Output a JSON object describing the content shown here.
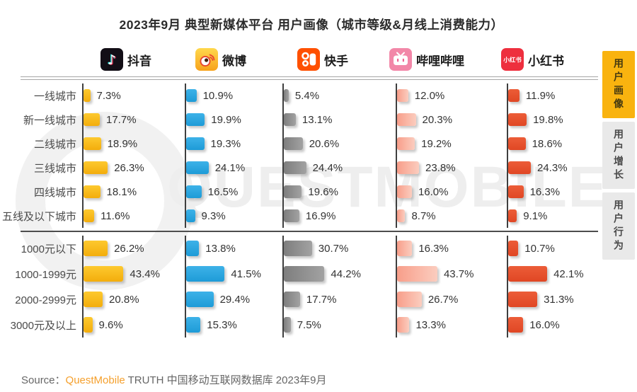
{
  "title": "2023年9月 典型新媒体平台 用户画像（城市等级&月线上消费能力）",
  "platforms": [
    {
      "name": "抖音",
      "icon": "douyin-icon",
      "bar": {
        "from": "#FDC92F",
        "to": "#F3AD0C",
        "dir": "180deg"
      }
    },
    {
      "name": "微博",
      "icon": "weibo-icon",
      "bar": {
        "from": "#3DB2E8",
        "to": "#1E9BD7",
        "dir": "180deg"
      }
    },
    {
      "name": "快手",
      "icon": "kuaishou-icon",
      "bar": {
        "from": "#7E7E7E",
        "to": "#A2A2A2",
        "dir": "90deg"
      }
    },
    {
      "name": "哔哩哔哩",
      "icon": "bilibili-icon",
      "bar": {
        "from": "#F89E8A",
        "to": "#FBCDBF",
        "dir": "90deg"
      }
    },
    {
      "name": "小红书",
      "icon": "xiaohongshu-icon",
      "bar": {
        "from": "#EC5D38",
        "to": "#E04724",
        "dir": "180deg"
      }
    }
  ],
  "chart_data": {
    "type": "bar",
    "orientation": "horizontal",
    "unit": "%",
    "value_suffix": "%",
    "legend_position": "top",
    "sections": [
      {
        "name": "城市等级",
        "categories": [
          "一线城市",
          "新一线城市",
          "二线城市",
          "三线城市",
          "四线城市",
          "五线及以下城市"
        ],
        "series": [
          {
            "name": "抖音",
            "values": [
              7.3,
              17.7,
              18.9,
              26.3,
              18.1,
              11.6
            ]
          },
          {
            "name": "微博",
            "values": [
              10.9,
              19.9,
              19.3,
              24.1,
              16.5,
              9.3
            ]
          },
          {
            "name": "快手",
            "values": [
              5.4,
              13.1,
              20.6,
              24.4,
              19.6,
              16.9
            ]
          },
          {
            "name": "哔哩哔哩",
            "values": [
              12.0,
              20.3,
              19.2,
              23.8,
              16.0,
              8.7
            ]
          },
          {
            "name": "小红书",
            "values": [
              11.9,
              19.8,
              18.6,
              24.3,
              16.3,
              9.1
            ]
          }
        ]
      },
      {
        "name": "月线上消费能力",
        "categories": [
          "1000元以下",
          "1000-1999元",
          "2000-2999元",
          "3000元及以上"
        ],
        "series": [
          {
            "name": "抖音",
            "values": [
              26.2,
              43.4,
              20.8,
              9.6
            ]
          },
          {
            "name": "微博",
            "values": [
              13.8,
              41.5,
              29.4,
              15.3
            ]
          },
          {
            "name": "快手",
            "values": [
              30.7,
              44.2,
              17.7,
              7.5
            ]
          },
          {
            "name": "哔哩哔哩",
            "values": [
              16.3,
              43.7,
              26.7,
              13.3
            ]
          },
          {
            "name": "小红书",
            "values": [
              10.7,
              42.1,
              31.3,
              16.0
            ]
          }
        ]
      }
    ]
  },
  "sidebar": {
    "active_bg": "#F9B30F",
    "inactive_bg": "#E9E9E9",
    "active_text": "#463a10",
    "inactive_text": "#4a4a4a",
    "tabs": [
      {
        "id": "user-profile",
        "label": "用户画像",
        "active": true
      },
      {
        "id": "user-growth",
        "label": "用户增长",
        "active": false
      },
      {
        "id": "user-behavior",
        "label": "用户行为",
        "active": false
      }
    ]
  },
  "watermark": {
    "text": "QUESTMOBILE"
  },
  "source": {
    "prefix": "Source：",
    "brand": "QuestMobile",
    "brand_color": "#F5A02D",
    "rest": " TRUTH 中国移动互联网数据库 2023年9月"
  }
}
